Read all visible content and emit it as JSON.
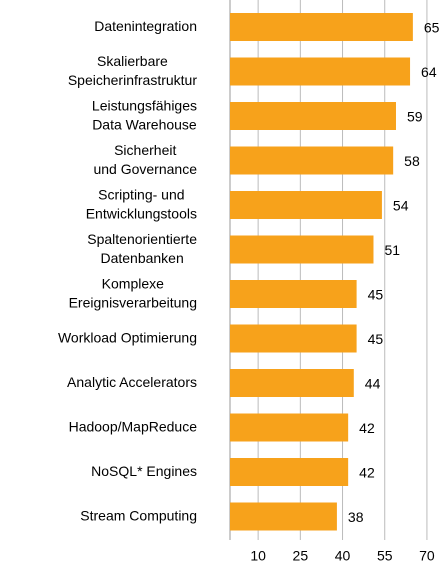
{
  "chart_data": {
    "type": "bar",
    "orientation": "horizontal",
    "categories": [
      "Datenintegration",
      "Skalierbare\nSpeicherinfrastruktur",
      "Leistungsfähiges\nData Warehouse",
      "Sicherheit\nund Governance",
      "Scripting- und\nEntwicklungstools",
      "Spaltenorientierte\nDatenbanken",
      "Komplexe\nEreignisverarbeitung",
      "Workload Optimierung",
      "Analytic Accelerators",
      "Hadoop/MapReduce",
      "NoSQL* Engines",
      "Stream Computing"
    ],
    "values": [
      65,
      64,
      59,
      58,
      54,
      51,
      45,
      45,
      44,
      42,
      42,
      38
    ],
    "color": "#f7a21b",
    "xlim": [
      0,
      75
    ],
    "xticks": [
      10,
      25,
      40,
      55,
      70
    ],
    "grid": true
  }
}
